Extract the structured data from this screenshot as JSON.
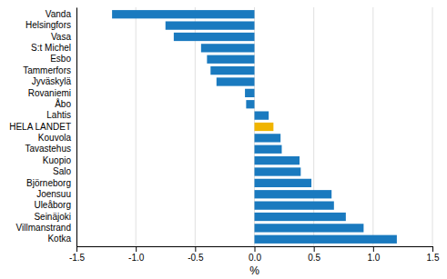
{
  "chart_data": {
    "type": "bar",
    "orientation": "horizontal",
    "categories": [
      "Vanda",
      "Helsingfors",
      "Vasa",
      "S:t Michel",
      "Esbo",
      "Tammerfors",
      "Jyväskylä",
      "Rovaniemi",
      "Åbo",
      "Lahtis",
      "HELA LANDET",
      "Kouvola",
      "Tavastehus",
      "Kuopio",
      "Salo",
      "Björneborg",
      "Joensuu",
      "Uleåborg",
      "Seinäjoki",
      "Villmanstrand",
      "Kotka"
    ],
    "values": [
      -1.2,
      -0.75,
      -0.68,
      -0.45,
      -0.4,
      -0.37,
      -0.32,
      -0.08,
      -0.07,
      0.12,
      0.16,
      0.22,
      0.23,
      0.38,
      0.39,
      0.48,
      0.65,
      0.67,
      0.77,
      0.92,
      1.2
    ],
    "colors": [
      "#1a7abf",
      "#1a7abf",
      "#1a7abf",
      "#1a7abf",
      "#1a7abf",
      "#1a7abf",
      "#1a7abf",
      "#1a7abf",
      "#1a7abf",
      "#1a7abf",
      "#f0b400",
      "#1a7abf",
      "#1a7abf",
      "#1a7abf",
      "#1a7abf",
      "#1a7abf",
      "#1a7abf",
      "#1a7abf",
      "#1a7abf",
      "#1a7abf",
      "#1a7abf"
    ],
    "xlabel": "%",
    "xlim": [
      -1.5,
      1.5
    ],
    "xticks": [
      -1.5,
      {
        "value": -1.0,
        "label": "-1.0"
      },
      -0.5,
      {
        "value": 0.0,
        "label": "0.0"
      },
      0.5,
      {
        "value": 1.0,
        "label": "1.0"
      },
      1.5
    ],
    "grid": true
  }
}
